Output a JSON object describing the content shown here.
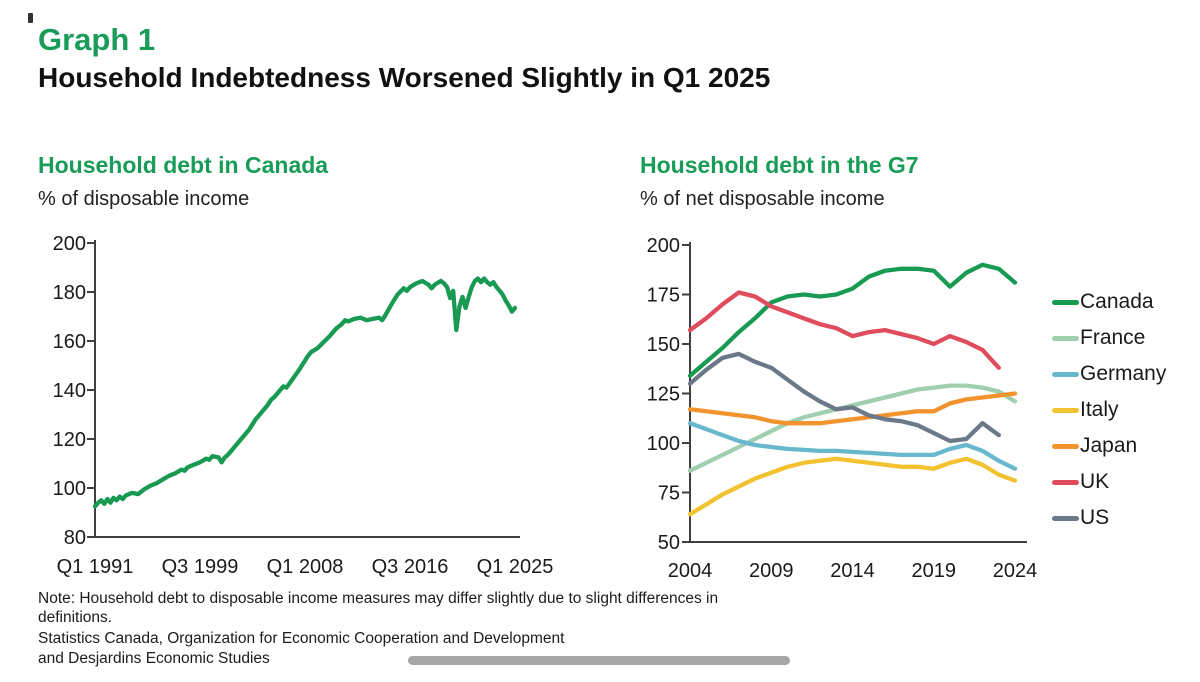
{
  "page": {
    "kicker": "Graph 1",
    "title": "Household Indebtedness Worsened Slightly in Q1 2025"
  },
  "colors": {
    "accent_green": "#189c57",
    "axis": "#3f3f3f",
    "scrollbar_gray": "#a6a6a6"
  },
  "footnotes": {
    "note_line1": "Note: Household debt to disposable income measures may differ slightly due to slight differences in",
    "note_line2": "definitions.",
    "sources_line1": "Statistics Canada, Organization for Economic Cooperation and Development",
    "sources_line2": "and Desjardins Economic Studies"
  },
  "chart_data": [
    {
      "type": "line",
      "title": "Household debt in Canada",
      "units_label": "% of disposable income",
      "xlabel": "",
      "ylabel": "% of disposable income",
      "grid": false,
      "legend_position": "none",
      "xlim": [
        1991,
        2025
      ],
      "ylim": [
        80,
        200
      ],
      "yticks": [
        80,
        100,
        120,
        140,
        160,
        180,
        200
      ],
      "xticks": [
        {
          "pos": 1991.0,
          "label": "Q1 1991"
        },
        {
          "pos": 1999.5,
          "label": "Q3 1999"
        },
        {
          "pos": 2008.0,
          "label": "Q1 2008"
        },
        {
          "pos": 2016.5,
          "label": "Q3 2016"
        },
        {
          "pos": 2025.0,
          "label": "Q1 2025"
        }
      ],
      "series": [
        {
          "name": "Canada",
          "color": "#189a52",
          "x": [
            1991.0,
            1991.25,
            1991.5,
            1991.75,
            1992.0,
            1992.25,
            1992.5,
            1992.75,
            1993.0,
            1993.25,
            1993.5,
            1994.0,
            1994.5,
            1995.0,
            1995.5,
            1996.0,
            1996.5,
            1997.0,
            1997.5,
            1998.0,
            1998.25,
            1998.5,
            1999.0,
            1999.5,
            2000.0,
            2000.25,
            2000.5,
            2001.0,
            2001.25,
            2001.5,
            2001.75,
            2002.0,
            2002.5,
            2003.0,
            2003.5,
            2004.0,
            2004.5,
            2005.0,
            2005.25,
            2005.5,
            2006.0,
            2006.25,
            2006.5,
            2007.0,
            2007.5,
            2008.0,
            2008.25,
            2008.5,
            2009.0,
            2009.5,
            2010.0,
            2010.5,
            2011.0,
            2011.25,
            2011.5,
            2012.0,
            2012.5,
            2013.0,
            2013.5,
            2014.0,
            2014.25,
            2014.5,
            2015.0,
            2015.5,
            2016.0,
            2016.25,
            2016.5,
            2017.0,
            2017.5,
            2018.0,
            2018.25,
            2018.5,
            2019.0,
            2019.25,
            2019.5,
            2019.75,
            2020.0,
            2020.25,
            2020.5,
            2020.75,
            2021.0,
            2021.25,
            2021.5,
            2021.75,
            2022.0,
            2022.25,
            2022.5,
            2022.75,
            2023.0,
            2023.25,
            2023.5,
            2023.75,
            2024.0,
            2024.25,
            2024.5,
            2024.75,
            2025.0
          ],
          "values": [
            92.5,
            94,
            95,
            93.5,
            95.5,
            94,
            96,
            95,
            96.5,
            95.5,
            97,
            98,
            97.5,
            99.5,
            101,
            102,
            103.5,
            105,
            106,
            107.5,
            107,
            108.5,
            109.5,
            110.5,
            112,
            111.5,
            113,
            112.5,
            110.5,
            112.5,
            113.5,
            115,
            118,
            121,
            124,
            128,
            131,
            134,
            136,
            137,
            140,
            141.5,
            141,
            144.5,
            148,
            152,
            154,
            155.5,
            157,
            159.5,
            162,
            165,
            167,
            168.5,
            168,
            169,
            169.5,
            168.5,
            169,
            169.5,
            168.5,
            170.5,
            175,
            179,
            181.5,
            180.5,
            182,
            183.5,
            184.5,
            183,
            181.5,
            183,
            184.5,
            183.5,
            182,
            177.5,
            180.5,
            164.5,
            174,
            178,
            173.5,
            178,
            182,
            184.5,
            185.5,
            184,
            185.5,
            184,
            183,
            184,
            182,
            180.5,
            179,
            176.5,
            174.5,
            172,
            173.5
          ]
        }
      ]
    },
    {
      "type": "line",
      "title": "Household debt in the G7",
      "units_label": "% of net disposable income",
      "xlabel": "",
      "ylabel": "% of net disposable income",
      "grid": false,
      "legend_position": "right",
      "xlim": [
        2004,
        2024
      ],
      "ylim": [
        50,
        200
      ],
      "yticks": [
        50,
        75,
        100,
        125,
        150,
        175,
        200
      ],
      "xticks": [
        {
          "pos": 2004,
          "label": "2004"
        },
        {
          "pos": 2009,
          "label": "2009"
        },
        {
          "pos": 2014,
          "label": "2014"
        },
        {
          "pos": 2019,
          "label": "2019"
        },
        {
          "pos": 2024,
          "label": "2024"
        }
      ],
      "series": [
        {
          "name": "Canada",
          "color": "#189a52",
          "x": [
            2004,
            2005,
            2006,
            2007,
            2008,
            2009,
            2010,
            2011,
            2012,
            2013,
            2014,
            2015,
            2016,
            2017,
            2018,
            2019,
            2020,
            2021,
            2022,
            2023,
            2024
          ],
          "values": [
            134,
            141,
            148,
            156,
            163,
            171,
            174,
            175,
            174,
            175,
            178,
            184,
            187,
            188,
            188,
            187,
            179,
            186,
            190,
            188,
            181
          ]
        },
        {
          "name": "France",
          "color": "#9fcfae",
          "x": [
            2004,
            2005,
            2006,
            2007,
            2008,
            2009,
            2010,
            2011,
            2012,
            2013,
            2014,
            2015,
            2016,
            2017,
            2018,
            2019,
            2020,
            2021,
            2022,
            2023,
            2024
          ],
          "values": [
            86,
            90,
            94,
            98,
            102,
            106,
            110,
            113,
            115,
            117,
            119,
            121,
            123,
            125,
            127,
            128,
            129,
            129,
            128,
            126,
            121
          ]
        },
        {
          "name": "Germany",
          "color": "#68b8cd",
          "x": [
            2004,
            2005,
            2006,
            2007,
            2008,
            2009,
            2010,
            2011,
            2012,
            2013,
            2014,
            2015,
            2016,
            2017,
            2018,
            2019,
            2020,
            2021,
            2022,
            2023,
            2024
          ],
          "values": [
            110,
            107,
            104,
            101,
            99,
            98,
            97,
            96.5,
            96,
            96,
            95.5,
            95,
            94.5,
            94,
            94,
            94,
            97,
            99,
            96,
            91,
            87
          ]
        },
        {
          "name": "Italy",
          "color": "#f2c230",
          "x": [
            2004,
            2005,
            2006,
            2007,
            2008,
            2009,
            2010,
            2011,
            2012,
            2013,
            2014,
            2015,
            2016,
            2017,
            2018,
            2019,
            2020,
            2021,
            2022,
            2023,
            2024
          ],
          "values": [
            64,
            69,
            74,
            78,
            82,
            85,
            88,
            90,
            91,
            92,
            91,
            90,
            89,
            88,
            88,
            87,
            90,
            92,
            89,
            84,
            81
          ]
        },
        {
          "name": "Japan",
          "color": "#f2932e",
          "x": [
            2004,
            2005,
            2006,
            2007,
            2008,
            2009,
            2010,
            2011,
            2012,
            2013,
            2014,
            2015,
            2016,
            2017,
            2018,
            2019,
            2020,
            2021,
            2022,
            2023,
            2024
          ],
          "values": [
            117,
            116,
            115,
            114,
            113,
            111,
            110,
            110,
            110,
            111,
            112,
            113,
            114,
            115,
            116,
            116,
            120,
            122,
            123,
            124,
            125
          ]
        },
        {
          "name": "UK",
          "color": "#df4d5d",
          "x": [
            2004,
            2005,
            2006,
            2007,
            2008,
            2009,
            2010,
            2011,
            2012,
            2013,
            2014,
            2015,
            2016,
            2017,
            2018,
            2019,
            2020,
            2021,
            2022,
            2023
          ],
          "values": [
            157,
            163,
            170,
            176,
            174,
            169,
            166,
            163,
            160,
            158,
            154,
            156,
            157,
            155,
            153,
            150,
            154,
            151,
            147,
            138
          ]
        },
        {
          "name": "US",
          "color": "#6b7887",
          "x": [
            2004,
            2005,
            2006,
            2007,
            2008,
            2009,
            2010,
            2011,
            2012,
            2013,
            2014,
            2015,
            2016,
            2017,
            2018,
            2019,
            2020,
            2021,
            2022,
            2023
          ],
          "values": [
            130,
            137,
            143,
            145,
            141,
            138,
            132,
            126,
            121,
            117,
            118,
            114,
            112,
            111,
            109,
            105,
            101,
            102,
            110,
            104
          ]
        }
      ]
    }
  ]
}
